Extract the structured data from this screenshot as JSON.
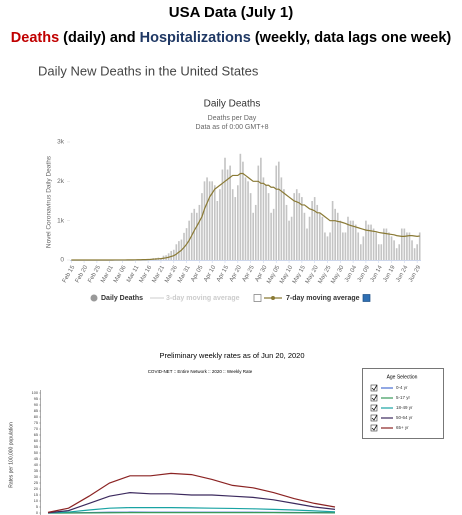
{
  "header": {
    "title": "USA Data (July 1)",
    "subtitle_parts": [
      {
        "text": "Deaths",
        "color": "#c00000"
      },
      {
        "text": "(daily) and",
        "color": "#000000"
      },
      {
        "text": "Hospitalizations",
        "color": "#1f3864"
      },
      {
        "text": "(weekly, data lags one week)",
        "color": "#000000"
      }
    ]
  },
  "chart_data": [
    {
      "type": "bar",
      "heading": "Daily New Deaths in the United States",
      "title": "Daily Deaths",
      "subtitle": "Deaths per Day",
      "note": "Data as of 0:00 GMT+8",
      "y_label": "Novel Coronavirus Daily Deaths",
      "categories": [
        "Feb 15",
        null,
        null,
        null,
        null,
        "Feb 20",
        null,
        null,
        null,
        null,
        "Feb 25",
        null,
        null,
        null,
        null,
        "Mar 01",
        null,
        null,
        null,
        null,
        "Mar 06",
        null,
        null,
        null,
        null,
        "Mar 11",
        null,
        null,
        null,
        null,
        "Mar 16",
        null,
        null,
        null,
        null,
        "Mar 21",
        null,
        null,
        null,
        null,
        "Mar 26",
        null,
        null,
        null,
        null,
        "Mar 31",
        null,
        null,
        null,
        null,
        "Apr 05",
        null,
        null,
        null,
        null,
        "Apr 10",
        null,
        null,
        null,
        null,
        "Apr 15",
        null,
        null,
        null,
        null,
        "Apr 20",
        null,
        null,
        null,
        null,
        "Apr 25",
        null,
        null,
        null,
        null,
        "Apr 30",
        null,
        null,
        null,
        null,
        "May 05",
        null,
        null,
        null,
        null,
        "May 10",
        null,
        null,
        null,
        null,
        "May 15",
        null,
        null,
        null,
        null,
        "May 20",
        null,
        null,
        null,
        null,
        "May 25",
        null,
        null,
        null,
        null,
        "May 30",
        null,
        null,
        null,
        null,
        "Jun 04",
        null,
        null,
        null,
        null,
        "Jun 09",
        null,
        null,
        null,
        null,
        "Jun 14",
        null,
        null,
        null,
        null,
        "Jun 19",
        null,
        null,
        null,
        null,
        "Jun 24",
        null,
        null,
        null,
        null,
        "Jun 29",
        null
      ],
      "series": [
        {
          "name": "Daily Deaths",
          "type": "bar",
          "color": "#c4c4c4",
          "legend_color": "#999999",
          "values": [
            0,
            0,
            0,
            0,
            0,
            0,
            0,
            0,
            0,
            0,
            0,
            0,
            0,
            0,
            0,
            1,
            1,
            2,
            4,
            1,
            2,
            3,
            4,
            4,
            8,
            8,
            12,
            10,
            11,
            20,
            24,
            30,
            49,
            48,
            61,
            50,
            110,
            120,
            170,
            230,
            260,
            400,
            480,
            520,
            690,
            810,
            1000,
            1200,
            1300,
            1200,
            1400,
            1700,
            2000,
            2100,
            2000,
            2000,
            1900,
            1500,
            1800,
            2300,
            2600,
            2300,
            2400,
            1800,
            1600,
            1900,
            2700,
            2500,
            2100,
            2000,
            1700,
            1200,
            1400,
            2400,
            2600,
            2100,
            1900,
            1700,
            1200,
            1300,
            2400,
            2500,
            2100,
            1800,
            1400,
            1000,
            1100,
            1700,
            1800,
            1700,
            1600,
            1200,
            800,
            1100,
            1500,
            1600,
            1400,
            1200,
            1100,
            700,
            600,
            700,
            1500,
            1300,
            1200,
            1000,
            700,
            700,
            1100,
            1000,
            1000,
            900,
            700,
            400,
            600,
            1000,
            900,
            900,
            800,
            700,
            400,
            400,
            800,
            800,
            700,
            600,
            500,
            300,
            400,
            800,
            800,
            700,
            700,
            500,
            300,
            400,
            700
          ]
        },
        {
          "name": "7-day moving average",
          "type": "line",
          "color": "#8a7a35",
          "values": [
            0,
            0,
            0,
            0,
            0,
            0,
            0,
            0,
            0,
            0,
            0,
            0,
            0,
            0,
            0,
            0,
            0,
            1,
            2,
            2,
            2,
            2,
            3,
            3,
            4,
            5,
            6,
            7,
            9,
            10,
            12,
            15,
            20,
            25,
            30,
            35,
            45,
            55,
            70,
            90,
            110,
            150,
            200,
            250,
            320,
            400,
            500,
            620,
            750,
            860,
            980,
            1100,
            1300,
            1450,
            1600,
            1700,
            1800,
            1850,
            1900,
            1950,
            2000,
            2050,
            2100,
            2150,
            2150,
            2150,
            2200,
            2200,
            2150,
            2100,
            2050,
            2000,
            2000,
            2000,
            1950,
            1950,
            1900,
            1900,
            1850,
            1850,
            1800,
            1800,
            1750,
            1700,
            1650,
            1600,
            1550,
            1500,
            1480,
            1450,
            1400,
            1400,
            1350,
            1300,
            1280,
            1250,
            1200,
            1200,
            1150,
            1100,
            1050,
            1000,
            1000,
            1000,
            980,
            970,
            950,
            930,
            900,
            880,
            860,
            840,
            820,
            800,
            780,
            760,
            750,
            740,
            730,
            720,
            700,
            690,
            680,
            670,
            660,
            650,
            640,
            620,
            610,
            600,
            600,
            610,
            620,
            620,
            610,
            600,
            610
          ]
        }
      ],
      "hidden_series": [
        {
          "name": "3-day moving average",
          "color": "#cccccc"
        }
      ],
      "ylim": [
        0,
        3000
      ],
      "yticks": [
        0,
        {
          "value": 1000,
          "label": "1k"
        },
        {
          "value": 2000,
          "label": "2k"
        },
        {
          "value": 3000,
          "label": "3k"
        }
      ],
      "grid": false
    },
    {
      "type": "line",
      "title": "Preliminary weekly rates as of Jun 20, 2020",
      "subtitle": "COVID-NET :: Entire Network :: 2020 :: Weekly Rate",
      "y_label": "Rates per 100,000 population",
      "legend_title": "Age Selection",
      "categories": [
        null,
        null,
        null,
        null,
        null,
        null,
        null,
        null,
        null,
        null,
        null,
        null,
        null,
        null,
        null
      ],
      "series": [
        {
          "name": "0-4 yr",
          "color": "#4a6fd1",
          "values": [
            0,
            0.1,
            0.3,
            0.6,
            0.7,
            0.6,
            0.6,
            0.6,
            0.6,
            0.6,
            0.6,
            0.5,
            0.4,
            0.3,
            0.2
          ]
        },
        {
          "name": "5-17 yr",
          "color": "#3a9a5a",
          "values": [
            0,
            0,
            0.1,
            0.2,
            0.3,
            0.3,
            0.3,
            0.3,
            0.3,
            0.3,
            0.3,
            0.3,
            0.2,
            0.2,
            0.1
          ]
        },
        {
          "name": "18-49 yr",
          "color": "#19a3a3",
          "values": [
            0.1,
            0.8,
            2.5,
            4,
            4.5,
            4.5,
            4.5,
            4.3,
            4,
            3.8,
            3.5,
            3,
            2.5,
            1.8,
            1
          ]
        },
        {
          "name": "50-64 yr",
          "color": "#3c2a5e",
          "values": [
            0.2,
            2,
            8,
            14,
            17,
            16,
            16,
            15,
            15,
            14,
            13,
            11,
            8,
            5,
            3
          ]
        },
        {
          "name": "65+ yr",
          "color": "#8b2323",
          "values": [
            0.5,
            4,
            14,
            25,
            31,
            31,
            33,
            32,
            28,
            23,
            21,
            17,
            12,
            8,
            5
          ]
        }
      ],
      "ylim": [
        0,
        100
      ],
      "yticks": [
        0,
        5,
        10,
        15,
        20,
        25,
        30,
        35,
        40,
        45,
        50,
        55,
        60,
        65,
        70,
        75,
        80,
        85,
        90,
        95,
        100
      ],
      "grid": false
    }
  ]
}
